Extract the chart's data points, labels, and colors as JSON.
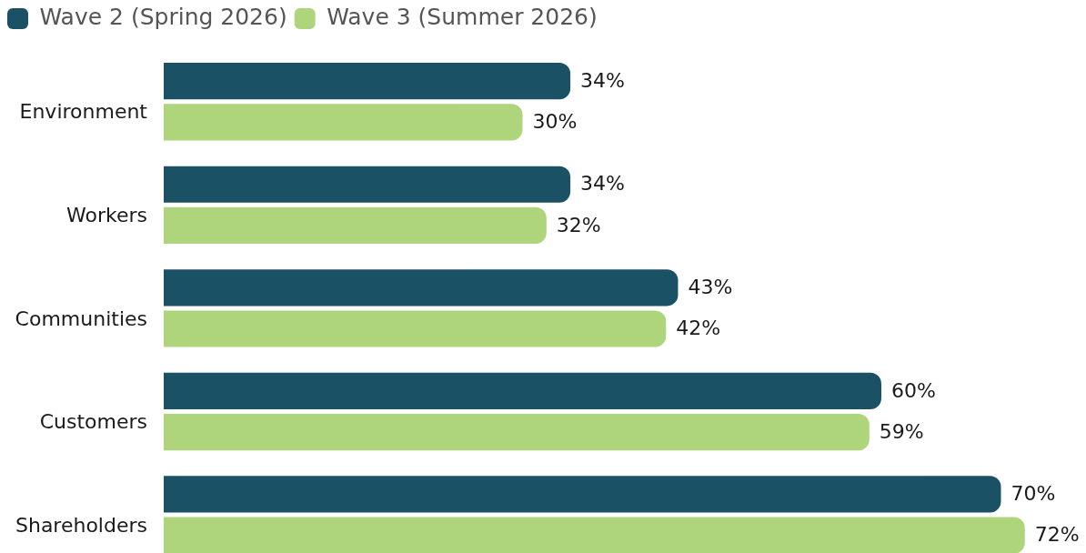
{
  "chart_data": {
    "type": "bar",
    "orientation": "horizontal",
    "categories": [
      "Environment",
      "Workers",
      "Communities",
      "Customers",
      "Shareholders"
    ],
    "series": [
      {
        "name": "Wave 2 (Spring 2026)",
        "color": "#1b5164",
        "values": [
          34,
          34,
          43,
          60,
          70
        ],
        "value_labels": [
          "34%",
          "34%",
          "43%",
          "60%",
          "70%"
        ]
      },
      {
        "name": "Wave 3 (Summer 2026)",
        "color": "#aed47c",
        "values": [
          30,
          32,
          42,
          59,
          72
        ],
        "value_labels": [
          "30%",
          "32%",
          "42%",
          "59%",
          "72%"
        ]
      }
    ],
    "legend": "top left",
    "grid": false,
    "tick_labels": "y"
  }
}
